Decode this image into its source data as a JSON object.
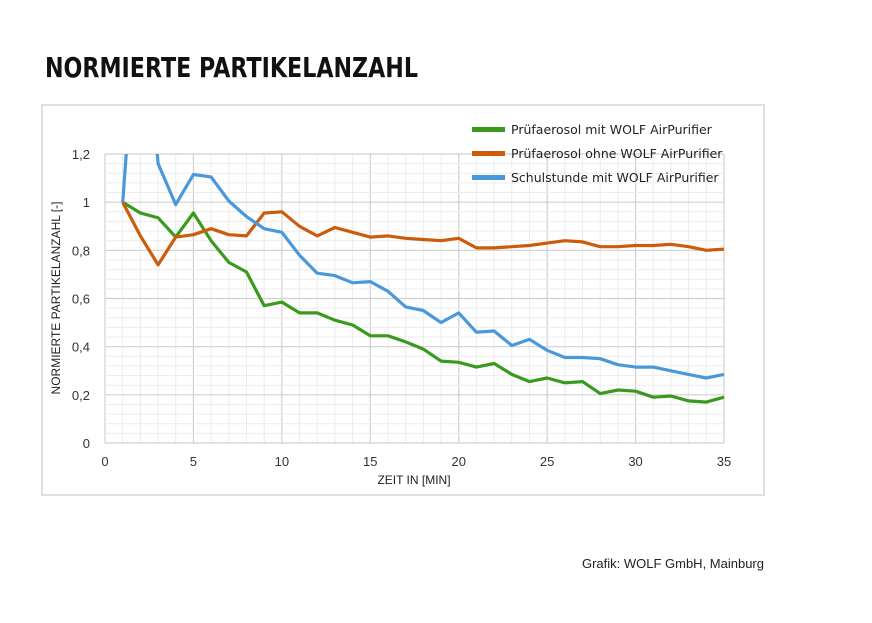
{
  "title": "NORMIERTE PARTIKELANZAHL",
  "credit": "Grafik: WOLF GmbH, Mainburg",
  "chart_data": {
    "type": "line",
    "xlabel": "ZEIT IN [MIN]",
    "ylabel": "NORMIERTE PARTIKELANZAHL [-]",
    "xlim": [
      0,
      35
    ],
    "ylim": [
      0,
      1.2
    ],
    "xticks": [
      0,
      5,
      10,
      15,
      20,
      25,
      30,
      35
    ],
    "xtick_labels": [
      "0",
      "5",
      "10",
      "15",
      "20",
      "25",
      "30",
      "35"
    ],
    "yticks": [
      0,
      0.2,
      0.4,
      0.6,
      0.8,
      1,
      1.2
    ],
    "ytick_labels": [
      "0",
      "0,2",
      "0,4",
      "0,6",
      "0,8",
      "1",
      "1,2"
    ],
    "grid": true,
    "legend_position": "top-right",
    "x": [
      1,
      2,
      3,
      4,
      5,
      6,
      7,
      8,
      9,
      10,
      11,
      12,
      13,
      14,
      15,
      16,
      17,
      18,
      19,
      20,
      21,
      22,
      23,
      24,
      25,
      26,
      27,
      28,
      29,
      30,
      31,
      32,
      33,
      34,
      35
    ],
    "series": [
      {
        "name": "Prüfaerosol mit WOLF AirPurifier",
        "color": "#3a9a1e",
        "values": [
          1.0,
          0.955,
          0.935,
          0.855,
          0.955,
          0.84,
          0.75,
          0.71,
          0.57,
          0.585,
          0.54,
          0.54,
          0.51,
          0.49,
          0.445,
          0.445,
          0.42,
          0.39,
          0.34,
          0.335,
          0.315,
          0.33,
          0.285,
          0.255,
          0.27,
          0.25,
          0.255,
          0.205,
          0.22,
          0.215,
          0.19,
          0.195,
          0.175,
          0.17,
          0.19
        ]
      },
      {
        "name": "Prüfaerosol ohne WOLF AirPurifier",
        "color": "#cc5c0a",
        "values": [
          1.0,
          0.86,
          0.74,
          0.855,
          0.865,
          0.89,
          0.865,
          0.86,
          0.955,
          0.96,
          0.9,
          0.86,
          0.895,
          0.875,
          0.855,
          0.86,
          0.85,
          0.845,
          0.84,
          0.85,
          0.81,
          0.81,
          0.815,
          0.82,
          0.83,
          0.84,
          0.835,
          0.815,
          0.815,
          0.82,
          0.82,
          0.825,
          0.815,
          0.8,
          0.805
        ]
      },
      {
        "name": "Schulstunde mit WOLF AirPurifier",
        "color": "#4a98dc",
        "values": [
          1.0,
          2.0,
          1.16,
          0.99,
          1.115,
          1.105,
          1.005,
          0.94,
          0.89,
          0.875,
          0.78,
          0.705,
          0.695,
          0.665,
          0.67,
          0.63,
          0.565,
          0.55,
          0.5,
          0.54,
          0.46,
          0.465,
          0.405,
          0.43,
          0.385,
          0.355,
          0.355,
          0.35,
          0.325,
          0.315,
          0.315,
          0.3,
          0.285,
          0.27,
          0.285
        ]
      }
    ]
  }
}
